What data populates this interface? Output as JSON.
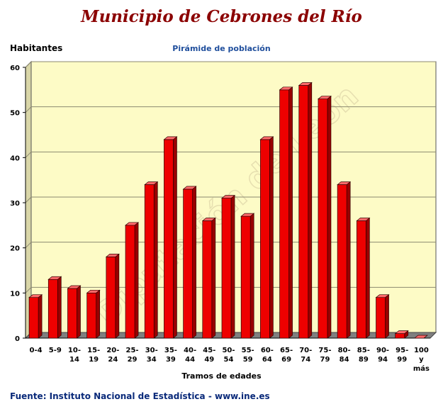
{
  "header": {
    "title": "Municipio de Cebrones del Río",
    "subtitle": "Pirámide de población",
    "source": "Fuente: Instituto Nacional de Estadística - www.ine.es",
    "watermark": "Diputación de León"
  },
  "colors": {
    "title": "#8b0000",
    "bar_front": "#ee0000",
    "bar_side": "#990000",
    "bar_top": "#ff6a6a",
    "plot_bg": "#fdfbc6",
    "floor": "#7f7f7f",
    "subtitle": "#1f4e9c",
    "source": "#0a2a7a"
  },
  "chart_data": {
    "type": "bar",
    "title": "Pirámide de población",
    "ylabel": "Habitantes",
    "xlabel": "Tramos de edades",
    "ylim": [
      0,
      60
    ],
    "yticks": [
      0,
      10,
      20,
      30,
      40,
      50,
      60
    ],
    "grid": true,
    "categories": [
      [
        "0-4"
      ],
      [
        "5-9"
      ],
      [
        "10-",
        "14"
      ],
      [
        "15-",
        "19"
      ],
      [
        "20-",
        "24"
      ],
      [
        "25-",
        "29"
      ],
      [
        "30-",
        "34"
      ],
      [
        "35-",
        "39"
      ],
      [
        "40-",
        "44"
      ],
      [
        "45-",
        "49"
      ],
      [
        "50-",
        "54"
      ],
      [
        "55-",
        "59"
      ],
      [
        "60-",
        "64"
      ],
      [
        "65-",
        "69"
      ],
      [
        "70-",
        "74"
      ],
      [
        "75-",
        "79"
      ],
      [
        "80-",
        "84"
      ],
      [
        "85-",
        "89"
      ],
      [
        "90-",
        "94"
      ],
      [
        "95-",
        "99"
      ],
      [
        "100",
        "y",
        "más"
      ]
    ],
    "values": [
      9,
      13,
      11,
      10,
      18,
      25,
      34,
      44,
      33,
      26,
      31,
      27,
      44,
      55,
      56,
      53,
      34,
      26,
      9,
      1,
      0
    ]
  }
}
